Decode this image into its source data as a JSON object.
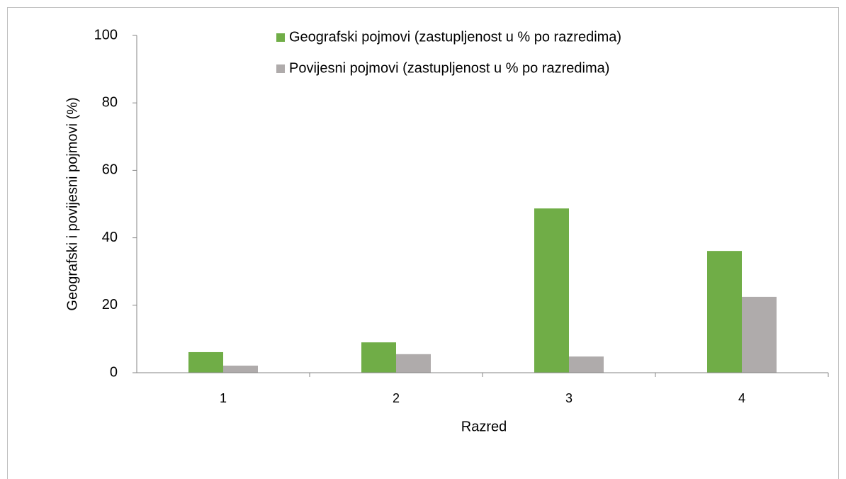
{
  "chart_data": {
    "type": "bar",
    "y_label": "Geografski i povijesni pojmovi (%)",
    "x_label": "Razred",
    "categories": [
      "1",
      "2",
      "3",
      "4"
    ],
    "series": [
      {
        "name": "Geografski pojmovi (zastupljenost u % po razredima)",
        "color": "#70ad47",
        "values": [
          6.1,
          9.0,
          48.7,
          36.1
        ]
      },
      {
        "name": "Povijesni pojmovi (zastupljenost u % po razredima)",
        "color": "#afabab",
        "values": [
          2.1,
          5.5,
          4.8,
          22.5
        ]
      }
    ],
    "ylim": [
      0,
      100
    ],
    "yticks": [
      0,
      20,
      40,
      60,
      80,
      100
    ],
    "grid": false,
    "legend": "top"
  }
}
